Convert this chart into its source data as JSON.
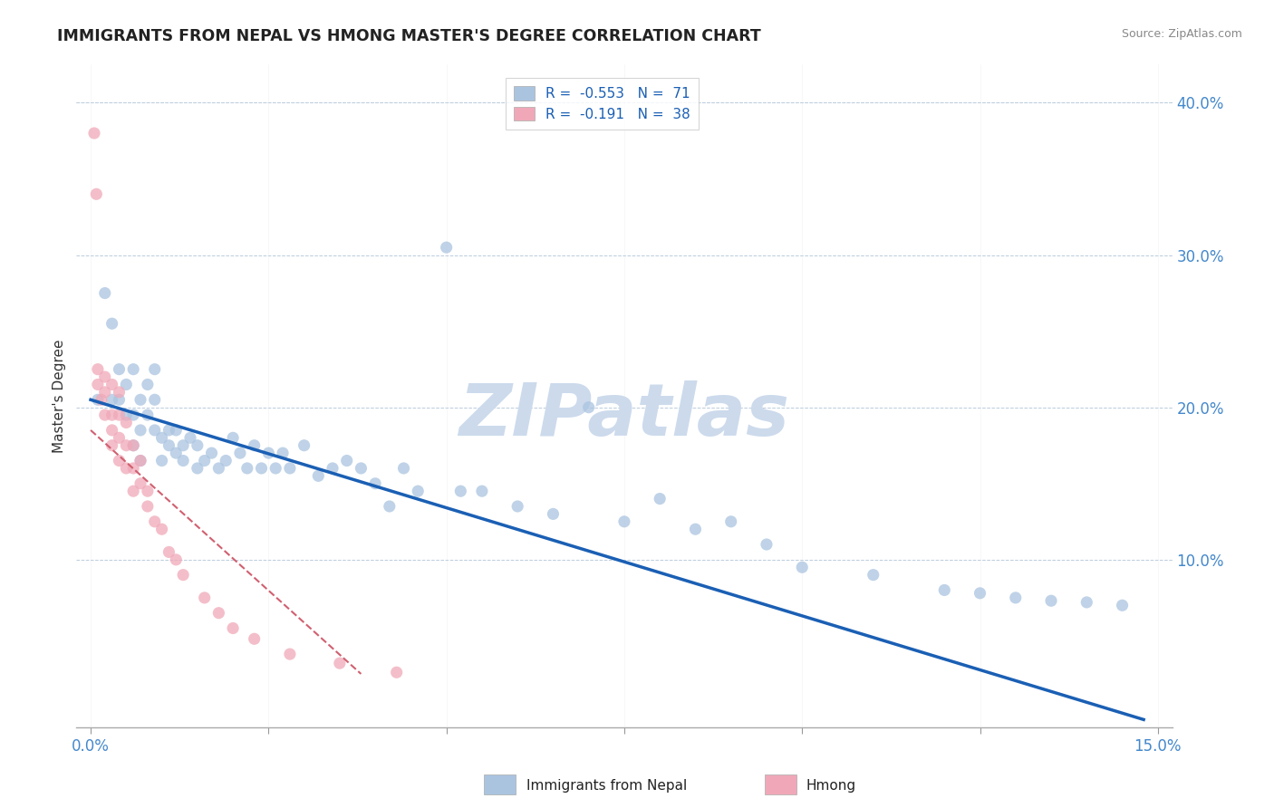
{
  "title": "IMMIGRANTS FROM NEPAL VS HMONG MASTER'S DEGREE CORRELATION CHART",
  "source": "Source: ZipAtlas.com",
  "ylabel": "Master's Degree",
  "xlim": [
    -0.002,
    0.152
  ],
  "ylim": [
    -0.01,
    0.425
  ],
  "xtick_vals": [
    0.0,
    0.025,
    0.05,
    0.075,
    0.1,
    0.125,
    0.15
  ],
  "xticklabels": [
    "0.0%",
    "",
    "",
    "",
    "",
    "",
    "15.0%"
  ],
  "ytick_vals": [
    0.1,
    0.2,
    0.3,
    0.4
  ],
  "yticklabels": [
    "10.0%",
    "20.0%",
    "30.0%",
    "40.0%"
  ],
  "nepal_R": -0.553,
  "nepal_N": 71,
  "hmong_R": -0.191,
  "hmong_N": 38,
  "nepal_color": "#aac4e0",
  "hmong_color": "#f0a8b8",
  "nepal_line_color": "#1a5fb4",
  "hmong_line_color": "#d06070",
  "watermark": "ZIPatlas",
  "watermark_color": "#ccdaec",
  "nepal_x": [
    0.001,
    0.002,
    0.003,
    0.003,
    0.004,
    0.004,
    0.005,
    0.005,
    0.006,
    0.006,
    0.006,
    0.007,
    0.007,
    0.007,
    0.008,
    0.008,
    0.009,
    0.009,
    0.009,
    0.01,
    0.01,
    0.011,
    0.011,
    0.012,
    0.012,
    0.013,
    0.013,
    0.014,
    0.015,
    0.015,
    0.016,
    0.017,
    0.018,
    0.019,
    0.02,
    0.021,
    0.022,
    0.023,
    0.024,
    0.025,
    0.026,
    0.027,
    0.028,
    0.03,
    0.032,
    0.034,
    0.036,
    0.038,
    0.04,
    0.042,
    0.044,
    0.046,
    0.05,
    0.052,
    0.055,
    0.06,
    0.065,
    0.07,
    0.075,
    0.08,
    0.085,
    0.09,
    0.095,
    0.1,
    0.11,
    0.12,
    0.125,
    0.13,
    0.135,
    0.14,
    0.145
  ],
  "nepal_y": [
    0.205,
    0.275,
    0.205,
    0.255,
    0.225,
    0.205,
    0.195,
    0.215,
    0.175,
    0.225,
    0.195,
    0.185,
    0.205,
    0.165,
    0.215,
    0.195,
    0.225,
    0.205,
    0.185,
    0.18,
    0.165,
    0.185,
    0.175,
    0.17,
    0.185,
    0.175,
    0.165,
    0.18,
    0.16,
    0.175,
    0.165,
    0.17,
    0.16,
    0.165,
    0.18,
    0.17,
    0.16,
    0.175,
    0.16,
    0.17,
    0.16,
    0.17,
    0.16,
    0.175,
    0.155,
    0.16,
    0.165,
    0.16,
    0.15,
    0.135,
    0.16,
    0.145,
    0.305,
    0.145,
    0.145,
    0.135,
    0.13,
    0.2,
    0.125,
    0.14,
    0.12,
    0.125,
    0.11,
    0.095,
    0.09,
    0.08,
    0.078,
    0.075,
    0.073,
    0.072,
    0.07
  ],
  "hmong_x": [
    0.0005,
    0.0008,
    0.001,
    0.001,
    0.0015,
    0.002,
    0.002,
    0.002,
    0.003,
    0.003,
    0.003,
    0.003,
    0.004,
    0.004,
    0.004,
    0.004,
    0.005,
    0.005,
    0.005,
    0.006,
    0.006,
    0.006,
    0.007,
    0.007,
    0.008,
    0.008,
    0.009,
    0.01,
    0.011,
    0.012,
    0.013,
    0.016,
    0.018,
    0.02,
    0.023,
    0.028,
    0.035,
    0.043
  ],
  "hmong_y": [
    0.38,
    0.34,
    0.225,
    0.215,
    0.205,
    0.22,
    0.21,
    0.195,
    0.215,
    0.195,
    0.185,
    0.175,
    0.21,
    0.195,
    0.18,
    0.165,
    0.19,
    0.175,
    0.16,
    0.175,
    0.16,
    0.145,
    0.165,
    0.15,
    0.145,
    0.135,
    0.125,
    0.12,
    0.105,
    0.1,
    0.09,
    0.075,
    0.065,
    0.055,
    0.048,
    0.038,
    0.032,
    0.026
  ],
  "nepal_trend_x": [
    0.0,
    0.148
  ],
  "nepal_trend_y": [
    0.205,
    -0.005
  ],
  "hmong_trend_x": [
    0.0,
    0.038
  ],
  "hmong_trend_y": [
    0.185,
    0.025
  ]
}
